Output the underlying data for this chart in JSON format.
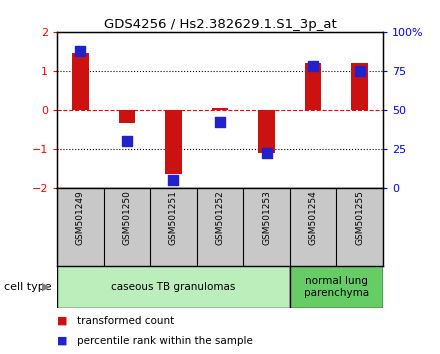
{
  "title": "GDS4256 / Hs2.382629.1.S1_3p_at",
  "samples": [
    "GSM501249",
    "GSM501250",
    "GSM501251",
    "GSM501252",
    "GSM501253",
    "GSM501254",
    "GSM501255"
  ],
  "transformed_counts": [
    1.45,
    -0.35,
    -1.65,
    0.05,
    -1.1,
    1.2,
    1.2
  ],
  "percentile_ranks": [
    88,
    30,
    5,
    42,
    22,
    78,
    75
  ],
  "ylim_left": [
    -2,
    2
  ],
  "ylim_right": [
    0,
    100
  ],
  "yticks_left": [
    -2,
    -1,
    0,
    1,
    2
  ],
  "yticks_right": [
    0,
    25,
    50,
    75,
    100
  ],
  "ytick_labels_right": [
    "0",
    "25",
    "50",
    "75",
    "100%"
  ],
  "bar_color": "#cc1111",
  "dot_color": "#2222cc",
  "groups": [
    {
      "label": "caseous TB granulomas",
      "samples": [
        0,
        1,
        2,
        3,
        4
      ],
      "color": "#bbeebb"
    },
    {
      "label": "normal lung\nparenchyma",
      "samples": [
        5,
        6
      ],
      "color": "#66cc66"
    }
  ],
  "cell_type_label": "cell type",
  "legend_items": [
    {
      "label": "transformed count",
      "color": "#cc1111"
    },
    {
      "label": "percentile rank within the sample",
      "color": "#2222cc"
    }
  ],
  "bg_color": "#ffffff",
  "plot_bg": "#ffffff",
  "tick_area_bg": "#c8c8c8",
  "grid_color": "#000000"
}
